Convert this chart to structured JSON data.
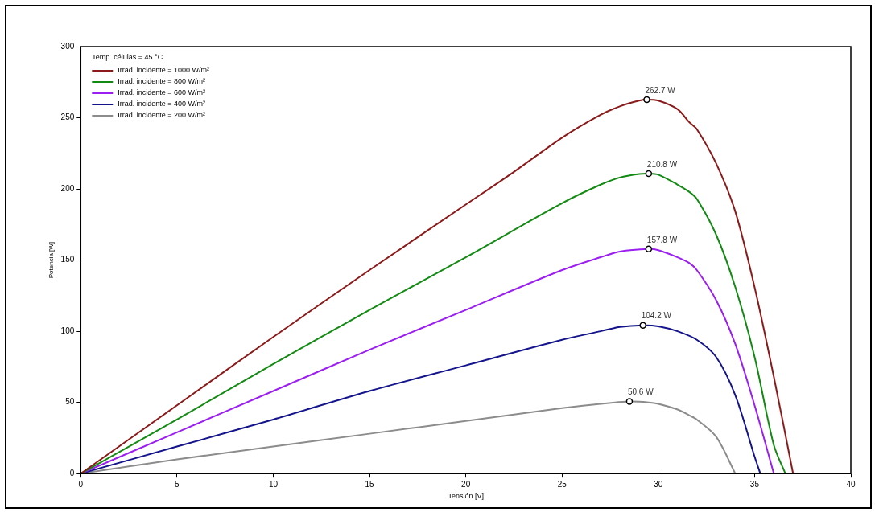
{
  "chart_data": {
    "type": "line",
    "xlabel": "Tensión [V]",
    "ylabel": "Potencia [W]",
    "legend_title": "Temp. células = 45 °C",
    "legend": "top left",
    "grid": false,
    "marker": "none",
    "line_style": "solid",
    "xlim": [
      0,
      40
    ],
    "xticks": [
      0,
      5,
      10,
      15,
      20,
      25,
      30,
      35,
      40
    ],
    "ylim": [
      0,
      300
    ],
    "yticks": [
      0,
      50,
      100,
      150,
      200,
      250,
      300
    ],
    "series": [
      {
        "name": "Irrad. incidente = 1000 W/m²",
        "color": "#8b1a1a",
        "x": [
          0,
          5,
          10,
          15,
          20,
          22.5,
          25,
          27,
          28,
          29,
          29.4,
          30,
          31,
          31.6,
          32,
          33,
          34,
          35,
          36,
          37
        ],
        "values": [
          0,
          48,
          96,
          143,
          189,
          212,
          236,
          252,
          258,
          262,
          262.7,
          262,
          256,
          247,
          242,
          218,
          184,
          131,
          68,
          0
        ]
      },
      {
        "name": "Irrad. incidente = 800 W/m²",
        "color": "#138a13",
        "x": [
          0,
          5,
          10,
          15,
          20,
          25,
          27,
          28,
          29,
          29.5,
          30,
          31,
          31.6,
          32,
          33,
          34,
          35,
          36,
          36.6
        ],
        "values": [
          0,
          38,
          77,
          115,
          152,
          190,
          203,
          208,
          210.5,
          210.8,
          210,
          203,
          198,
          193,
          168,
          131,
          82,
          20,
          0
        ]
      },
      {
        "name": "Irrad. incidente = 600 W/m²",
        "color": "#9b1ff0",
        "x": [
          0,
          5,
          10,
          15,
          20,
          25,
          27,
          28,
          29.5,
          30,
          31,
          31.6,
          32,
          33,
          34,
          35,
          36
        ],
        "values": [
          0,
          29,
          58,
          87,
          115,
          143,
          152,
          156,
          157.8,
          157,
          152,
          148,
          143,
          122,
          91,
          48,
          0
        ]
      },
      {
        "name": "Irrad. incidente = 400 W/m²",
        "color": "#14148c",
        "x": [
          0,
          5,
          10,
          15,
          20,
          25,
          27,
          28,
          29.2,
          30,
          31,
          32,
          33,
          34,
          35,
          35.3
        ],
        "values": [
          0,
          19,
          38,
          58,
          76,
          94,
          100,
          103,
          104.2,
          103.5,
          100,
          94,
          82,
          55,
          12,
          0
        ]
      },
      {
        "name": "Irrad. incidente = 200 W/m²",
        "color": "#8c8c8c",
        "x": [
          0,
          5,
          10,
          15,
          20,
          25,
          27,
          28.5,
          29.5,
          30,
          31,
          31.6,
          32,
          33,
          34
        ],
        "values": [
          0,
          10,
          19,
          28,
          37,
          46,
          49,
          50.6,
          50,
          49,
          45,
          41,
          38,
          26,
          0
        ]
      }
    ],
    "annotations": [
      {
        "text": "262.7 W",
        "x": 29.4,
        "y": 262.7
      },
      {
        "text": "210.8 W",
        "x": 29.5,
        "y": 210.8
      },
      {
        "text": "157.8 W",
        "x": 29.5,
        "y": 157.8
      },
      {
        "text": "104.2 W",
        "x": 29.2,
        "y": 104.2
      },
      {
        "text": "50.6 W",
        "x": 28.5,
        "y": 50.6
      }
    ]
  }
}
